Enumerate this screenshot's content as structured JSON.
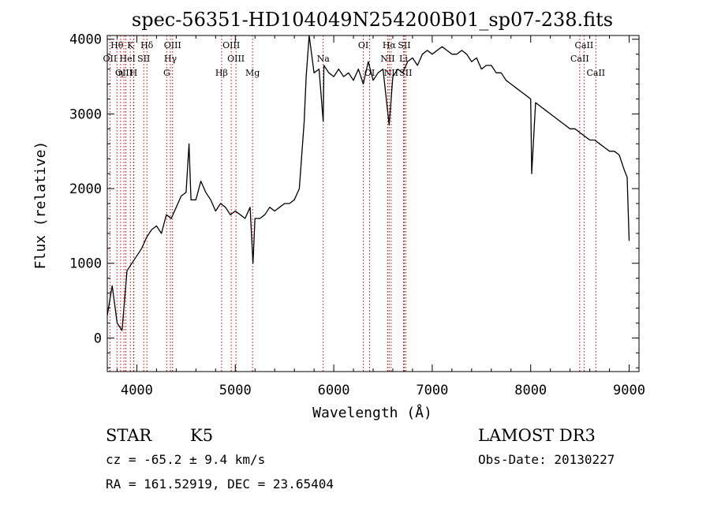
{
  "chart_data": {
    "type": "line",
    "title": "spec-56351-HD104049N254200B01_sp07-238.fits",
    "xlabel": "Wavelength (Å)",
    "ylabel": "Flux (relative)",
    "xlim": [
      3700,
      9100
    ],
    "ylim": [
      -450,
      4050
    ],
    "xticks": [
      4000,
      5000,
      6000,
      7000,
      8000,
      9000
    ],
    "yticks": [
      0,
      1000,
      2000,
      3000,
      4000
    ],
    "series": [
      {
        "name": "spectrum",
        "x": [
          3700,
          3750,
          3800,
          3850,
          3900,
          3950,
          4000,
          4050,
          4100,
          4150,
          4200,
          4250,
          4300,
          4350,
          4400,
          4450,
          4500,
          4530,
          4550,
          4600,
          4650,
          4700,
          4750,
          4800,
          4850,
          4900,
          4950,
          5000,
          5050,
          5100,
          5150,
          5180,
          5200,
          5250,
          5300,
          5350,
          5400,
          5450,
          5500,
          5550,
          5600,
          5650,
          5700,
          5720,
          5750,
          5800,
          5850,
          5893,
          5900,
          5950,
          6000,
          6050,
          6100,
          6150,
          6200,
          6250,
          6300,
          6350,
          6400,
          6450,
          6500,
          6563,
          6600,
          6650,
          6700,
          6750,
          6800,
          6850,
          6900,
          6950,
          7000,
          7050,
          7100,
          7150,
          7200,
          7250,
          7300,
          7350,
          7400,
          7450,
          7500,
          7550,
          7600,
          7650,
          7700,
          7750,
          7800,
          7850,
          7900,
          7950,
          8000,
          8010,
          8050,
          8100,
          8150,
          8200,
          8250,
          8300,
          8350,
          8400,
          8450,
          8500,
          8550,
          8600,
          8650,
          8700,
          8750,
          8800,
          8850,
          8900,
          8950,
          8980,
          9000
        ],
        "y": [
          300,
          700,
          200,
          100,
          900,
          1000,
          1100,
          1200,
          1350,
          1450,
          1500,
          1400,
          1650,
          1600,
          1750,
          1900,
          1950,
          2600,
          1850,
          1850,
          2100,
          1950,
          1850,
          1700,
          1800,
          1750,
          1650,
          1700,
          1650,
          1600,
          1750,
          1000,
          1600,
          1600,
          1650,
          1750,
          1700,
          1750,
          1800,
          1800,
          1850,
          2000,
          2900,
          3500,
          4050,
          3550,
          3600,
          2900,
          3650,
          3550,
          3500,
          3600,
          3500,
          3550,
          3450,
          3600,
          3400,
          3700,
          3450,
          3550,
          3600,
          2850,
          3500,
          3600,
          3550,
          3700,
          3750,
          3650,
          3800,
          3850,
          3800,
          3850,
          3900,
          3850,
          3800,
          3800,
          3850,
          3800,
          3700,
          3750,
          3600,
          3650,
          3650,
          3550,
          3550,
          3450,
          3400,
          3350,
          3300,
          3250,
          3200,
          2200,
          3150,
          3100,
          3050,
          3000,
          2950,
          2900,
          2850,
          2800,
          2800,
          2750,
          2700,
          2650,
          2650,
          2600,
          2550,
          2500,
          2500,
          2450,
          2250,
          2150,
          1300
        ]
      }
    ],
    "spectral_lines": [
      {
        "name": "Hθ",
        "x": 3798,
        "row": 1
      },
      {
        "name": "OII",
        "x": 3727,
        "row": 2
      },
      {
        "name": "OIII",
        "x": 3869,
        "row": 3
      },
      {
        "name": "He",
        "x": 3889,
        "row": 2
      },
      {
        "name": "K",
        "x": 3934,
        "row": 1
      },
      {
        "name": "I",
        "x": 3970,
        "row": 2
      },
      {
        "name": "η",
        "x": 3835,
        "row": 3
      },
      {
        "name": "H",
        "x": 3968,
        "row": 3
      },
      {
        "name": "SII",
        "x": 4070,
        "row": 2
      },
      {
        "name": "Hδ",
        "x": 4102,
        "row": 1
      },
      {
        "name": "OIII",
        "x": 4363,
        "row": 1
      },
      {
        "name": "Hγ",
        "x": 4341,
        "row": 2
      },
      {
        "name": "G",
        "x": 4304,
        "row": 3
      },
      {
        "name": "Hβ",
        "x": 4861,
        "row": 3
      },
      {
        "name": "OIII",
        "x": 4959,
        "row": 1
      },
      {
        "name": "OIII",
        "x": 5007,
        "row": 2
      },
      {
        "name": "Mg",
        "x": 5175,
        "row": 3
      },
      {
        "name": "Na",
        "x": 5893,
        "row": 2
      },
      {
        "name": "OI",
        "x": 6300,
        "row": 1
      },
      {
        "name": "OI",
        "x": 6364,
        "row": 3
      },
      {
        "name": "Hα",
        "x": 6563,
        "row": 1
      },
      {
        "name": "SII",
        "x": 6716,
        "row": 1
      },
      {
        "name": "NII",
        "x": 6548,
        "row": 2
      },
      {
        "name": "Li",
        "x": 6708,
        "row": 2
      },
      {
        "name": "NII",
        "x": 6583,
        "row": 3
      },
      {
        "name": "SII",
        "x": 6731,
        "row": 3
      },
      {
        "name": "CaII",
        "x": 8542,
        "row": 1
      },
      {
        "name": "CaII",
        "x": 8498,
        "row": 2
      },
      {
        "name": "CaII",
        "x": 8662,
        "row": 3
      }
    ]
  },
  "info": {
    "object_class": "STAR",
    "subclass": "K5",
    "survey": "LAMOST DR3",
    "redshift": "cz = -65.2 ± 9.4 km/s",
    "obs_date": "Obs-Date: 20130227",
    "coords": "RA = 161.52919, DEC =  23.65404"
  },
  "colors": {
    "line_marker": "#cc0000",
    "spectrum": "#000000"
  }
}
